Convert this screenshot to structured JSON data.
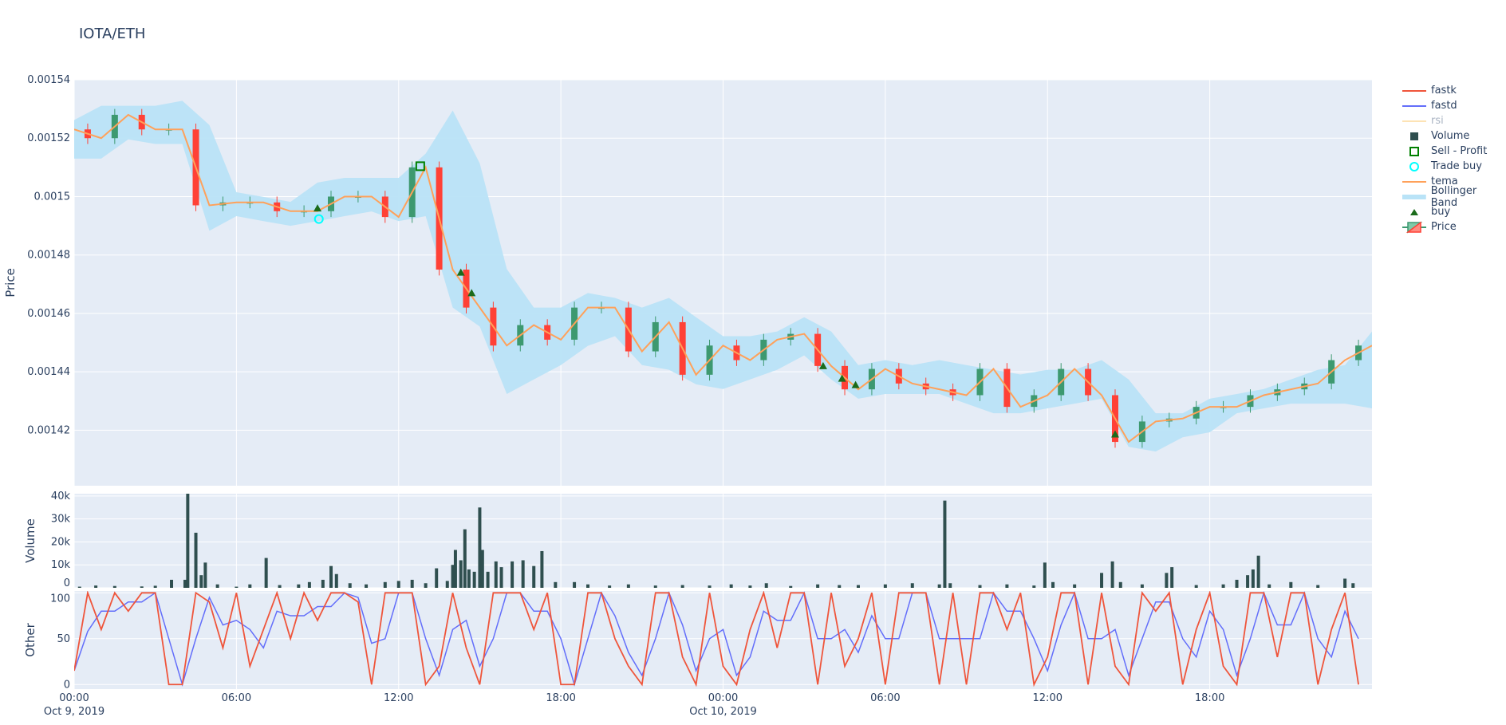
{
  "title": "IOTA/ETH",
  "chart_data": {
    "type": "candlestick",
    "title": "IOTA/ETH",
    "x_start": "2019-10-09 00:00",
    "x_step": "1h",
    "xlim": [
      "2019-10-09 00:00",
      "2019-10-11 00:00"
    ],
    "x_ticks": [
      {
        "at": "2019-10-09 00:00",
        "label": "00:00",
        "sub": "Oct 9, 2019"
      },
      {
        "at": "2019-10-09 06:00",
        "label": "06:00",
        "sub": ""
      },
      {
        "at": "2019-10-09 12:00",
        "label": "12:00",
        "sub": ""
      },
      {
        "at": "2019-10-09 18:00",
        "label": "18:00",
        "sub": ""
      },
      {
        "at": "2019-10-10 00:00",
        "label": "00:00",
        "sub": "Oct 10, 2019"
      },
      {
        "at": "2019-10-10 06:00",
        "label": "06:00",
        "sub": ""
      },
      {
        "at": "2019-10-10 12:00",
        "label": "12:00",
        "sub": ""
      },
      {
        "at": "2019-10-10 18:00",
        "label": "18:00",
        "sub": ""
      }
    ],
    "grid": true,
    "legend_position": "right",
    "panels": {
      "price": {
        "ylabel": "Price",
        "ylim": [
          0.001401,
          0.00154
        ],
        "y_ticks": [
          {
            "v": 0.00142,
            "label": "0.00142"
          },
          {
            "v": 0.00144,
            "label": "0.00144"
          },
          {
            "v": 0.00146,
            "label": "0.00146"
          },
          {
            "v": 0.00148,
            "label": "0.00148"
          },
          {
            "v": 0.0015,
            "label": "0.0015"
          },
          {
            "v": 0.00152,
            "label": "0.00152"
          },
          {
            "v": 0.00154,
            "label": "0.00154"
          }
        ],
        "close": [
          0.001523,
          0.00152,
          0.001528,
          0.001523,
          0.001523,
          0.001497,
          0.001498,
          0.001498,
          0.001495,
          0.001495,
          0.0015,
          0.0015,
          0.001493,
          0.00151,
          0.001475,
          0.001462,
          0.001449,
          0.001456,
          0.001451,
          0.001462,
          0.001462,
          0.001447,
          0.001457,
          0.001439,
          0.001449,
          0.001444,
          0.001451,
          0.001453,
          0.001442,
          0.001434,
          0.001441,
          0.001436,
          0.001434,
          0.001432,
          0.001441,
          0.001428,
          0.001432,
          0.001441,
          0.001432,
          0.001416,
          0.001423,
          0.001424,
          0.001428,
          0.001428,
          0.001432,
          0.001434,
          0.001436,
          0.001444,
          0.001449
        ],
        "bb_upper": [
          0.0015262,
          0.0015311,
          0.0015311,
          0.0015311,
          0.0015328,
          0.0015245,
          0.0015015,
          0.0014999,
          0.0014982,
          0.0015048,
          0.0015064,
          0.0015064,
          0.0015064,
          0.0015147,
          0.0015295,
          0.0015114,
          0.0014752,
          0.001462,
          0.001462,
          0.001467,
          0.0014653,
          0.001462,
          0.0014653,
          0.0014587,
          0.0014522,
          0.0014522,
          0.0014538,
          0.0014587,
          0.0014538,
          0.0014423,
          0.001444,
          0.0014423,
          0.001444,
          0.0014423,
          0.0014407,
          0.0014391,
          0.0014407,
          0.0014407,
          0.001444,
          0.0014374,
          0.0014258,
          0.0014258,
          0.0014308,
          0.0014324,
          0.0014341,
          0.0014374,
          0.0014407,
          0.0014423,
          0.0014538
        ],
        "bb_lower": [
          0.001513,
          0.001513,
          0.0015196,
          0.001518,
          0.001518,
          0.0014883,
          0.0014933,
          0.0014916,
          0.00149,
          0.0014916,
          0.0014933,
          0.0014949,
          0.0014916,
          0.0014933,
          0.001462,
          0.0014555,
          0.0014324,
          0.0014374,
          0.0014423,
          0.0014489,
          0.0014522,
          0.0014423,
          0.0014407,
          0.0014357,
          0.0014341,
          0.0014374,
          0.0014407,
          0.0014456,
          0.0014374,
          0.0014308,
          0.0014324,
          0.0014324,
          0.0014324,
          0.0014291,
          0.0014258,
          0.0014258,
          0.0014275,
          0.0014291,
          0.0014308,
          0.0014143,
          0.0014127,
          0.0014176,
          0.0014193,
          0.0014258,
          0.0014275,
          0.0014291,
          0.0014291,
          0.0014291,
          0.0014275
        ],
        "buy": [
          {
            "t": "2019-10-09 09:00",
            "p": 0.001496
          },
          {
            "t": "2019-10-09 14:18",
            "p": 0.001474
          },
          {
            "t": "2019-10-09 14:42",
            "p": 0.001467
          },
          {
            "t": "2019-10-10 03:42",
            "p": 0.001442
          },
          {
            "t": "2019-10-10 04:24",
            "p": 0.0014377
          },
          {
            "t": "2019-10-10 04:54",
            "p": 0.0014355
          },
          {
            "t": "2019-10-10 14:30",
            "p": 0.0014186
          }
        ],
        "trade_buy": [
          {
            "t": "2019-10-09 09:03",
            "p": 0.0014923
          }
        ],
        "sell_profit": [
          {
            "t": "2019-10-09 12:48",
            "p": 0.0015104
          }
        ]
      },
      "volume": {
        "ylabel": "Volume",
        "ylim": [
          0,
          41000
        ],
        "y_ticks": [
          {
            "v": 0,
            "label": "0"
          },
          {
            "v": 10000,
            "label": "10k"
          },
          {
            "v": 20000,
            "label": "20k"
          },
          {
            "v": 30000,
            "label": "30k"
          },
          {
            "v": 40000,
            "label": "40k"
          }
        ],
        "bars": [
          [
            "2019-10-09 00:12",
            500
          ],
          [
            "2019-10-09 00:48",
            1000
          ],
          [
            "2019-10-09 01:30",
            800
          ],
          [
            "2019-10-09 02:30",
            600
          ],
          [
            "2019-10-09 03:00",
            900
          ],
          [
            "2019-10-09 03:36",
            3500
          ],
          [
            "2019-10-09 04:06",
            3500
          ],
          [
            "2019-10-09 04:12",
            41000
          ],
          [
            "2019-10-09 04:30",
            24000
          ],
          [
            "2019-10-09 04:42",
            5500
          ],
          [
            "2019-10-09 04:51",
            11000
          ],
          [
            "2019-10-09 05:18",
            1500
          ],
          [
            "2019-10-09 06:00",
            500
          ],
          [
            "2019-10-09 06:30",
            1500
          ],
          [
            "2019-10-09 07:06",
            13000
          ],
          [
            "2019-10-09 07:36",
            1200
          ],
          [
            "2019-10-09 08:18",
            1500
          ],
          [
            "2019-10-09 08:42",
            2500
          ],
          [
            "2019-10-09 09:12",
            3500
          ],
          [
            "2019-10-09 09:30",
            9500
          ],
          [
            "2019-10-09 09:42",
            6000
          ],
          [
            "2019-10-09 10:12",
            2000
          ],
          [
            "2019-10-09 10:48",
            1500
          ],
          [
            "2019-10-09 11:30",
            2500
          ],
          [
            "2019-10-09 12:00",
            3000
          ],
          [
            "2019-10-09 12:30",
            3500
          ],
          [
            "2019-10-09 13:00",
            2000
          ],
          [
            "2019-10-09 13:24",
            8500
          ],
          [
            "2019-10-09 13:48",
            3000
          ],
          [
            "2019-10-09 14:00",
            10000
          ],
          [
            "2019-10-09 14:06",
            16500
          ],
          [
            "2019-10-09 14:18",
            12000
          ],
          [
            "2019-10-09 14:27",
            25500
          ],
          [
            "2019-10-09 14:36",
            8000
          ],
          [
            "2019-10-09 14:48",
            7000
          ],
          [
            "2019-10-09 15:00",
            35000
          ],
          [
            "2019-10-09 15:06",
            16500
          ],
          [
            "2019-10-09 15:18",
            7000
          ],
          [
            "2019-10-09 15:36",
            11500
          ],
          [
            "2019-10-09 15:48",
            9000
          ],
          [
            "2019-10-09 16:12",
            11500
          ],
          [
            "2019-10-09 16:36",
            12000
          ],
          [
            "2019-10-09 17:00",
            9500
          ],
          [
            "2019-10-09 17:18",
            16000
          ],
          [
            "2019-10-09 17:48",
            2500
          ],
          [
            "2019-10-09 18:30",
            2500
          ],
          [
            "2019-10-09 19:00",
            1500
          ],
          [
            "2019-10-09 19:48",
            1000
          ],
          [
            "2019-10-09 20:30",
            1500
          ],
          [
            "2019-10-09 21:30",
            1000
          ],
          [
            "2019-10-09 22:30",
            1200
          ],
          [
            "2019-10-09 23:30",
            1000
          ],
          [
            "2019-10-10 00:18",
            1500
          ],
          [
            "2019-10-10 01:00",
            1000
          ],
          [
            "2019-10-10 01:36",
            2000
          ],
          [
            "2019-10-10 02:30",
            800
          ],
          [
            "2019-10-10 03:30",
            1500
          ],
          [
            "2019-10-10 04:18",
            1200
          ],
          [
            "2019-10-10 05:00",
            1200
          ],
          [
            "2019-10-10 06:00",
            1500
          ],
          [
            "2019-10-10 07:00",
            2000
          ],
          [
            "2019-10-10 08:00",
            1500
          ],
          [
            "2019-10-10 08:12",
            38000
          ],
          [
            "2019-10-10 08:24",
            2000
          ],
          [
            "2019-10-10 09:30",
            1200
          ],
          [
            "2019-10-10 10:30",
            1500
          ],
          [
            "2019-10-10 11:30",
            1000
          ],
          [
            "2019-10-10 11:54",
            11000
          ],
          [
            "2019-10-10 12:12",
            2500
          ],
          [
            "2019-10-10 13:00",
            1500
          ],
          [
            "2019-10-10 14:00",
            6500
          ],
          [
            "2019-10-10 14:24",
            11500
          ],
          [
            "2019-10-10 14:42",
            2500
          ],
          [
            "2019-10-10 15:30",
            1500
          ],
          [
            "2019-10-10 16:24",
            6500
          ],
          [
            "2019-10-10 16:36",
            9000
          ],
          [
            "2019-10-10 17:30",
            1200
          ],
          [
            "2019-10-10 18:30",
            1500
          ],
          [
            "2019-10-10 19:00",
            3500
          ],
          [
            "2019-10-10 19:24",
            5500
          ],
          [
            "2019-10-10 19:36",
            8000
          ],
          [
            "2019-10-10 19:48",
            14000
          ],
          [
            "2019-10-10 20:12",
            1500
          ],
          [
            "2019-10-10 21:00",
            2500
          ],
          [
            "2019-10-10 22:00",
            1200
          ],
          [
            "2019-10-10 23:00",
            4000
          ],
          [
            "2019-10-10 23:18",
            2000
          ]
        ]
      },
      "other": {
        "ylabel": "Other",
        "ylim": [
          -5,
          102
        ],
        "x_step": "30min",
        "y_ticks": [
          {
            "v": 0,
            "label": "0"
          },
          {
            "v": 50,
            "label": "50"
          },
          {
            "v": 100,
            "label": "100"
          }
        ],
        "fastk": [
          15,
          100,
          60,
          100,
          80,
          100,
          100,
          0,
          0,
          100,
          90,
          40,
          100,
          20,
          60,
          100,
          50,
          100,
          70,
          100,
          100,
          90,
          0,
          100,
          100,
          100,
          0,
          20,
          100,
          40,
          0,
          100,
          100,
          100,
          60,
          100,
          0,
          0,
          100,
          100,
          50,
          20,
          0,
          100,
          100,
          30,
          0,
          100,
          20,
          0,
          60,
          100,
          40,
          100,
          100,
          0,
          100,
          20,
          50,
          100,
          0,
          100,
          100,
          100,
          0,
          100,
          0,
          100,
          100,
          60,
          100,
          0,
          30,
          100,
          100,
          0,
          100,
          20,
          0,
          100,
          80,
          100,
          0,
          60,
          100,
          20,
          0,
          100,
          100,
          30,
          100,
          100,
          0,
          60,
          100,
          0
        ],
        "fastd": [
          15,
          58,
          80,
          80,
          90,
          90,
          100,
          50,
          0,
          50,
          95,
          65,
          70,
          60,
          40,
          80,
          75,
          75,
          85,
          85,
          100,
          95,
          45,
          50,
          100,
          100,
          50,
          10,
          60,
          70,
          20,
          50,
          100,
          100,
          80,
          80,
          50,
          0,
          50,
          100,
          75,
          35,
          10,
          50,
          100,
          65,
          15,
          50,
          60,
          10,
          30,
          80,
          70,
          70,
          100,
          50,
          50,
          60,
          35,
          75,
          50,
          50,
          100,
          100,
          50,
          50,
          50,
          50,
          100,
          80,
          80,
          50,
          15,
          65,
          100,
          50,
          50,
          60,
          10,
          50,
          90,
          90,
          50,
          30,
          80,
          60,
          10,
          50,
          100,
          65,
          65,
          100,
          50,
          30,
          80,
          50
        ]
      }
    },
    "legend": [
      {
        "name": "fastk",
        "icon": "line",
        "color": "#ef553b"
      },
      {
        "name": "fastd",
        "icon": "line",
        "color": "#636efa"
      },
      {
        "name": "rsi",
        "icon": "line",
        "color": "#fde3b5",
        "hidden": true
      },
      {
        "name": "Volume",
        "icon": "square",
        "color": "#2f4f4f"
      },
      {
        "name": "Sell - Profit",
        "icon": "square-open",
        "color": "#008000"
      },
      {
        "name": "Trade buy",
        "icon": "circle-open",
        "color": "#00ffff"
      },
      {
        "name": "tema",
        "icon": "line",
        "color": "#ffa15a"
      },
      {
        "name": "Bollinger Band",
        "icon": "band",
        "color": "#b9e3f7"
      },
      {
        "name": "buy",
        "icon": "triangle",
        "color": "#1b6b1b"
      },
      {
        "name": "Price",
        "icon": "candle",
        "color": "#3d9970"
      }
    ],
    "colors": {
      "increasing": "#3d9970",
      "decreasing": "#ff4136",
      "volume": "#2f4f4f",
      "band": "#b9e3f7",
      "plot_bg": "#e5ecf6",
      "tema": "#ffa15a"
    }
  }
}
